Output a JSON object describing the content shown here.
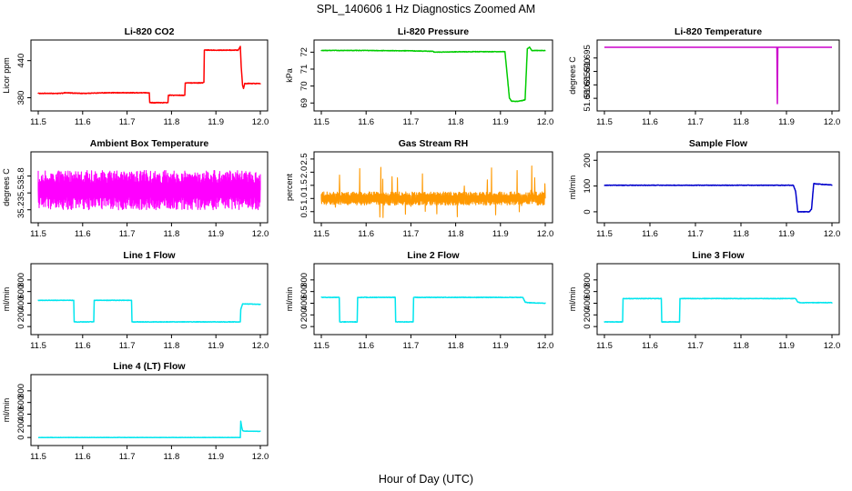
{
  "figure": {
    "title": "SPL_140606  1 Hz Diagnostics Zoomed AM",
    "xlabel": "Hour of Day (UTC)"
  },
  "chart_data": [
    {
      "type": "line",
      "title": "Li-820 CO2",
      "ylabel": "Licor ppm",
      "color": "#ff0000",
      "xlim": [
        11.5,
        12.0
      ],
      "ylim": [
        366,
        466
      ],
      "xticks": [
        11.5,
        11.6,
        11.7,
        11.8,
        11.9,
        12.0
      ],
      "xtick_labels": [
        "11.5",
        "11.6",
        "11.7",
        "11.8",
        "11.9",
        "12.0"
      ],
      "yticks": [
        380,
        440
      ],
      "ytick_labels": [
        "380",
        "440"
      ],
      "noise": 1.0,
      "x": [
        11.5,
        11.55,
        11.56,
        11.6,
        11.65,
        11.7,
        11.75,
        11.751,
        11.76,
        11.792,
        11.793,
        11.83,
        11.831,
        11.87,
        11.873,
        11.874,
        11.92,
        11.95,
        11.955,
        11.957,
        11.96,
        11.962,
        11.965,
        12.0
      ],
      "y": [
        387,
        387,
        388,
        387,
        388,
        388,
        388,
        372,
        372,
        372,
        384,
        384,
        404,
        404,
        405,
        457,
        457,
        457,
        463,
        430,
        400,
        395,
        403,
        403
      ]
    },
    {
      "type": "line",
      "title": "Li-820 Pressure",
      "ylabel": "kPa",
      "color": "#00cc00",
      "xlim": [
        11.5,
        12.0
      ],
      "ylim": [
        68.8,
        72.45
      ],
      "xticks": [
        11.5,
        11.6,
        11.7,
        11.8,
        11.9,
        12.0
      ],
      "xtick_labels": [
        "11.5",
        "11.6",
        "11.7",
        "11.8",
        "11.9",
        "12.0"
      ],
      "yticks": [
        69,
        70,
        71,
        72
      ],
      "ytick_labels": [
        "69",
        "70",
        "71",
        "72"
      ],
      "noise": 0.03,
      "x": [
        11.5,
        11.6,
        11.7,
        11.75,
        11.751,
        11.8,
        11.85,
        11.91,
        11.92,
        11.925,
        11.94,
        11.95,
        11.955,
        11.96,
        11.965,
        11.97,
        12.0
      ],
      "y": [
        72.1,
        72.1,
        72.08,
        72.05,
        72.0,
        72.02,
        72.03,
        72.03,
        69.3,
        69.1,
        69.1,
        69.15,
        69.2,
        72.2,
        72.3,
        72.1,
        72.1
      ]
    },
    {
      "type": "line",
      "title": "Li-820 Temperature",
      "ylabel": "degrees C",
      "color": "#cc00cc",
      "xlim": [
        11.5,
        12.0
      ],
      "ylim": [
        51.677,
        51.7
      ],
      "xticks": [
        11.5,
        11.6,
        11.7,
        11.8,
        11.9,
        12.0
      ],
      "xtick_labels": [
        "11.5",
        "11.6",
        "11.7",
        "11.8",
        "11.9",
        "12.0"
      ],
      "yticks": [
        51.68,
        51.685,
        51.69,
        51.695
      ],
      "ytick_labels": [
        "51.680",
        "51.685",
        "51.690",
        "51.695"
      ],
      "noise": 0,
      "x": [
        11.5,
        11.879,
        11.88,
        11.881,
        12.0
      ],
      "y": [
        51.699,
        51.699,
        51.678,
        51.699,
        51.699
      ]
    },
    {
      "type": "line",
      "title": "Ambient Box Temperature",
      "ylabel": "degrees C",
      "color": "#ff00ff",
      "xlim": [
        11.5,
        12.0
      ],
      "ylim": [
        35.05,
        36.15
      ],
      "xticks": [
        11.5,
        11.6,
        11.7,
        11.8,
        11.9,
        12.0
      ],
      "xtick_labels": [
        "11.5",
        "11.6",
        "11.7",
        "11.8",
        "11.9",
        "12.0"
      ],
      "yticks": [
        35.2,
        35.5,
        35.8
      ],
      "ytick_labels": [
        "35.2",
        "35.5",
        "35.8"
      ],
      "noise": 0.35,
      "osc": true,
      "x": [
        11.5,
        12.0
      ],
      "y": [
        35.55,
        35.55
      ]
    },
    {
      "type": "line",
      "title": "Gas Stream RH",
      "ylabel": "percent",
      "color": "#ff9900",
      "xlim": [
        11.5,
        12.0
      ],
      "ylim": [
        0.25,
        2.6
      ],
      "xticks": [
        11.5,
        11.6,
        11.7,
        11.8,
        11.9,
        12.0
      ],
      "xtick_labels": [
        "11.5",
        "11.6",
        "11.7",
        "11.8",
        "11.9",
        "12.0"
      ],
      "yticks": [
        0.5,
        1.0,
        1.5,
        2.0,
        2.5
      ],
      "ytick_labels": [
        "0.5",
        "1.0",
        "1.5",
        "2.0",
        "2.5"
      ],
      "noise": 0.25,
      "osc": true,
      "spikes": true,
      "x": [
        11.5,
        12.0
      ],
      "y": [
        1.0,
        1.0
      ]
    },
    {
      "type": "line",
      "title": "Sample Flow",
      "ylabel": "ml/min",
      "color": "#0000cc",
      "xlim": [
        11.5,
        12.0
      ],
      "ylim": [
        -25,
        215
      ],
      "xticks": [
        11.5,
        11.6,
        11.7,
        11.8,
        11.9,
        12.0
      ],
      "xtick_labels": [
        "11.5",
        "11.6",
        "11.7",
        "11.8",
        "11.9",
        "12.0"
      ],
      "yticks": [
        0,
        100,
        200
      ],
      "ytick_labels": [
        "0",
        "100",
        "200"
      ],
      "noise": 2.0,
      "x": [
        11.5,
        11.9,
        11.915,
        11.92,
        11.925,
        11.95,
        11.955,
        11.96,
        11.965,
        12.0
      ],
      "y": [
        103,
        103,
        103,
        80,
        0,
        0,
        10,
        110,
        108,
        104
      ]
    },
    {
      "type": "line",
      "title": "Line 1 Flow",
      "ylabel": "ml/min",
      "color": "#00e5ee",
      "xlim": [
        11.5,
        12.0
      ],
      "ylim": [
        -60,
        1000
      ],
      "xticks": [
        11.5,
        11.6,
        11.7,
        11.8,
        11.9,
        12.0
      ],
      "xtick_labels": [
        "11.5",
        "11.6",
        "11.7",
        "11.8",
        "11.9",
        "12.0"
      ],
      "yticks": [
        0,
        200,
        400,
        600,
        800
      ],
      "ytick_labels": [
        "0",
        "200",
        "400",
        "600",
        "800"
      ],
      "noise": 8,
      "x": [
        11.5,
        11.58,
        11.581,
        11.625,
        11.626,
        11.71,
        11.711,
        11.955,
        11.956,
        11.96,
        12.0
      ],
      "y": [
        450,
        450,
        80,
        80,
        450,
        450,
        80,
        80,
        290,
        390,
        380
      ]
    },
    {
      "type": "line",
      "title": "Line 2 Flow",
      "ylabel": "ml/min",
      "color": "#00e5ee",
      "xlim": [
        11.5,
        12.0
      ],
      "ylim": [
        -60,
        1000
      ],
      "xticks": [
        11.5,
        11.6,
        11.7,
        11.8,
        11.9,
        12.0
      ],
      "xtick_labels": [
        "11.5",
        "11.6",
        "11.7",
        "11.8",
        "11.9",
        "12.0"
      ],
      "yticks": [
        0,
        200,
        400,
        600,
        800
      ],
      "ytick_labels": [
        "0",
        "200",
        "400",
        "600",
        "800"
      ],
      "noise": 8,
      "x": [
        11.5,
        11.54,
        11.541,
        11.58,
        11.581,
        11.665,
        11.666,
        11.705,
        11.706,
        11.95,
        11.955,
        11.96,
        12.0
      ],
      "y": [
        500,
        500,
        80,
        80,
        500,
        500,
        80,
        80,
        500,
        500,
        420,
        410,
        400
      ]
    },
    {
      "type": "line",
      "title": "Line 3 Flow",
      "ylabel": "ml/min",
      "color": "#00e5ee",
      "xlim": [
        11.5,
        12.0
      ],
      "ylim": [
        -60,
        1000
      ],
      "xticks": [
        11.5,
        11.6,
        11.7,
        11.8,
        11.9,
        12.0
      ],
      "xtick_labels": [
        "11.5",
        "11.6",
        "11.7",
        "11.8",
        "11.9",
        "12.0"
      ],
      "yticks": [
        0,
        200,
        400,
        600,
        800
      ],
      "ytick_labels": [
        "0",
        "200",
        "400",
        "600",
        "800"
      ],
      "noise": 8,
      "x": [
        11.5,
        11.54,
        11.541,
        11.625,
        11.626,
        11.665,
        11.666,
        11.92,
        11.925,
        11.93,
        12.0
      ],
      "y": [
        80,
        80,
        480,
        480,
        80,
        80,
        480,
        480,
        420,
        410,
        410
      ]
    },
    {
      "type": "line",
      "title": "Line 4 (LT) Flow",
      "ylabel": "ml/min",
      "color": "#00e5ee",
      "xlim": [
        11.5,
        12.0
      ],
      "ylim": [
        -60,
        1000
      ],
      "xticks": [
        11.5,
        11.6,
        11.7,
        11.8,
        11.9,
        12.0
      ],
      "xtick_labels": [
        "11.5",
        "11.6",
        "11.7",
        "11.8",
        "11.9",
        "12.0"
      ],
      "yticks": [
        0,
        200,
        400,
        600,
        800
      ],
      "ytick_labels": [
        "0",
        "200",
        "400",
        "600",
        "800"
      ],
      "noise": 4,
      "x": [
        11.5,
        11.955,
        11.956,
        11.958,
        11.96,
        11.963,
        11.965,
        12.0
      ],
      "y": [
        0,
        0,
        280,
        180,
        120,
        110,
        110,
        105
      ]
    }
  ]
}
